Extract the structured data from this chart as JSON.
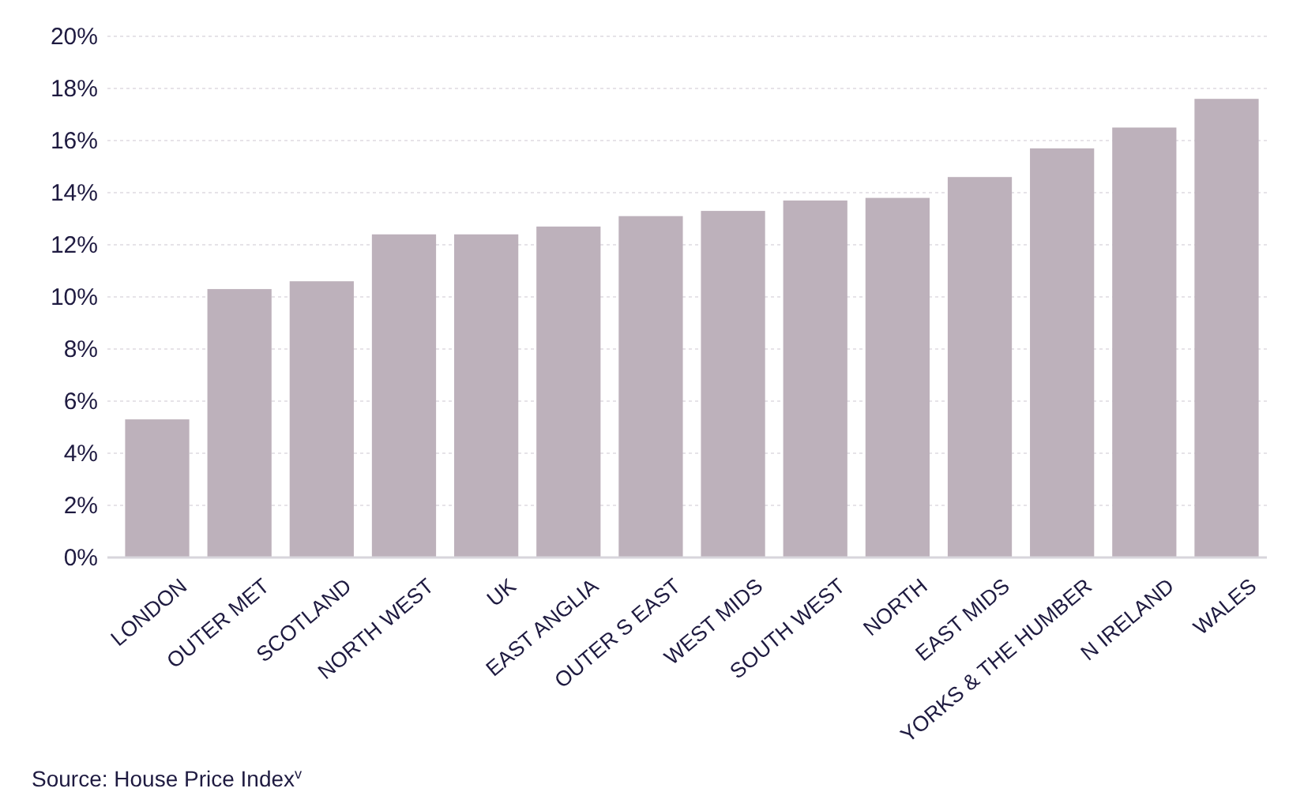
{
  "chart_data": {
    "type": "bar",
    "categories": [
      "LONDON",
      "OUTER MET",
      "SCOTLAND",
      "NORTH WEST",
      "UK",
      "EAST ANGLIA",
      "OUTER S EAST",
      "WEST MIDS",
      "SOUTH WEST",
      "NORTH",
      "EAST MIDS",
      "YORKS & THE HUMBER",
      "N IRELAND",
      "WALES"
    ],
    "values": [
      5.3,
      10.3,
      10.6,
      12.4,
      12.4,
      12.7,
      13.1,
      13.3,
      13.7,
      13.8,
      14.6,
      15.7,
      16.5,
      17.6
    ],
    "color": "#bdb1bb",
    "ylim": [
      0,
      20
    ],
    "yticks": [
      {
        "value": 0,
        "label": "0%"
      },
      {
        "value": 2,
        "label": "2%"
      },
      {
        "value": 4,
        "label": "4%"
      },
      {
        "value": 6,
        "label": "6%"
      },
      {
        "value": 8,
        "label": "8%"
      },
      {
        "value": 10,
        "label": "10%"
      },
      {
        "value": 12,
        "label": "12%"
      },
      {
        "value": 14,
        "label": "14%"
      },
      {
        "value": 16,
        "label": "16%"
      },
      {
        "value": 18,
        "label": "18%"
      },
      {
        "value": 20,
        "label": "20%"
      }
    ],
    "grid": "y",
    "annotations": [
      "Source: House Price Index$^{v}$"
    ]
  }
}
